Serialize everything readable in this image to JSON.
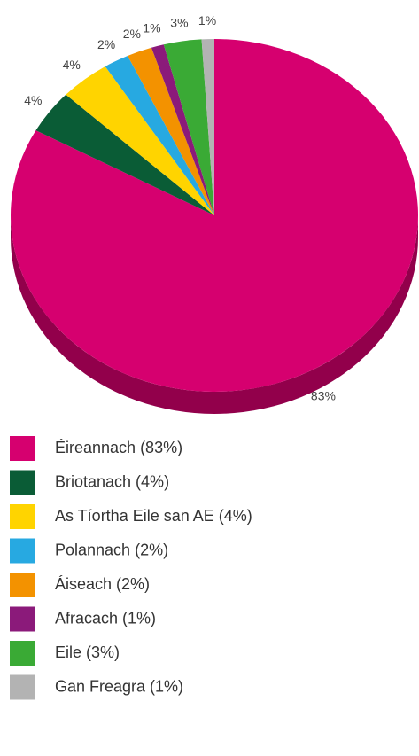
{
  "chart_data": {
    "type": "pie",
    "categories": [
      "Éireannach (83%)",
      "Briotanach (4%)",
      "As Tíortha Eile san AE (4%)",
      "Polannach (2%)",
      "Áiseach (2%)",
      "Afracach (1%)",
      "Eile (3%)",
      "Gan Freagra (1%)"
    ],
    "values": [
      83,
      4,
      4,
      2,
      2,
      1,
      3,
      1
    ],
    "value_labels": [
      "83%",
      "4%",
      "4%",
      "2%",
      "2%",
      "1%",
      "3%",
      "1%"
    ],
    "colors": [
      "#d6006f",
      "#0a5c36",
      "#ffd400",
      "#27a9e1",
      "#f39200",
      "#8b1a7a",
      "#3aaa35",
      "#b3b3b3"
    ],
    "legend": "bottom"
  }
}
